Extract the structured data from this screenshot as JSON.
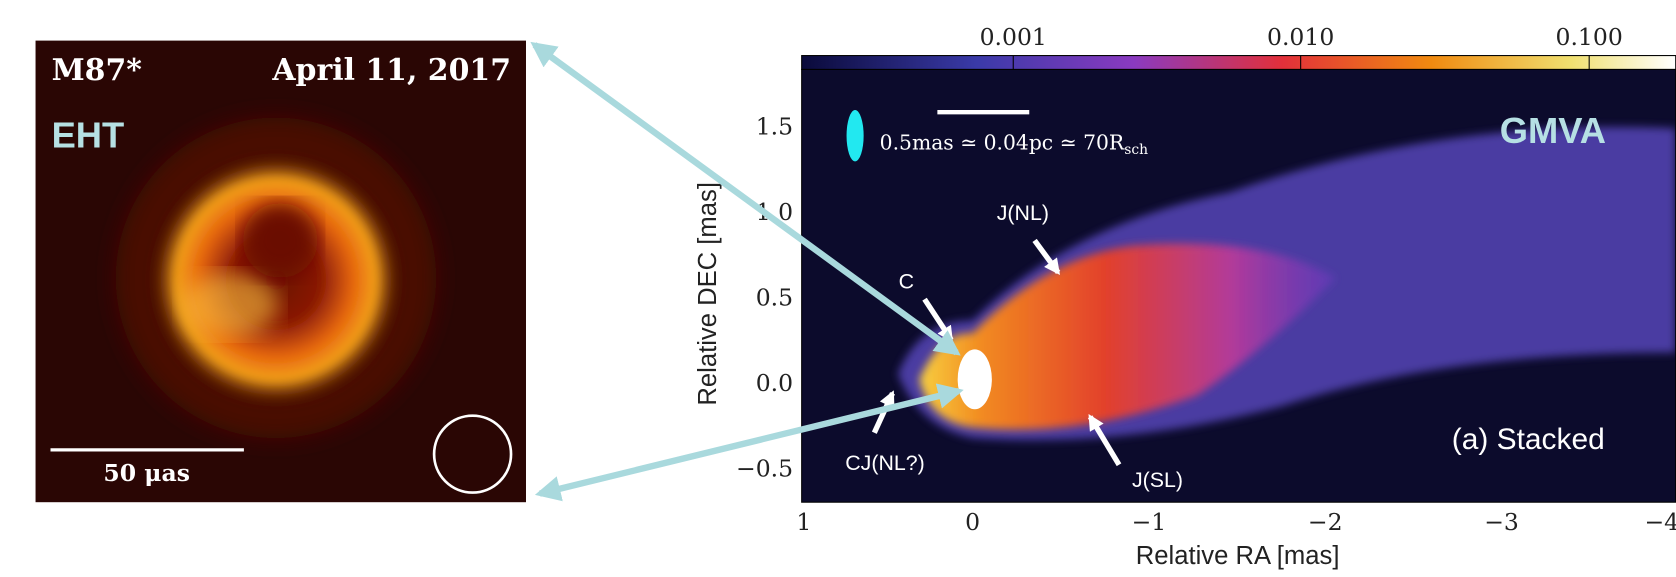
{
  "left_panel": {
    "object": "M87*",
    "date": "April 11, 2017",
    "instrument": "EHT",
    "scale_label": "50 μas"
  },
  "right_panel": {
    "colorbar_ticks": [
      "0.001",
      "0.010",
      "0.100"
    ],
    "y_ticks": [
      "1.5",
      "1.0",
      "0.5",
      "0.0",
      "−0.5"
    ],
    "x_ticks": [
      "1",
      "0",
      "−1",
      "−2",
      "−3",
      "−4"
    ],
    "x_label": "Relative RA [mas]",
    "y_label": "Relative DEC [mas]",
    "scale_text": "0.5mas ≃ 0.04pc ≃ 70R",
    "scale_subscript": "sch",
    "instrument": "GMVA",
    "panel_label": "(a) Stacked",
    "annotations": [
      "J(NL)",
      "C",
      "CJ(NL?)",
      "J(SL)"
    ]
  }
}
